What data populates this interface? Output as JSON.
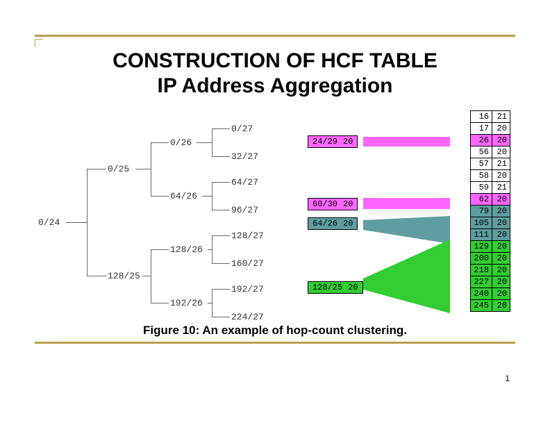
{
  "title_line1": "CONSTRUCTION OF HCF TABLE",
  "title_line2": "IP Address Aggregation",
  "caption": "Figure 10: An example of hop-count clustering.",
  "page_number": "1",
  "tree": {
    "root": "0/24",
    "l1_top": "0/25",
    "l1_bot": "128/25",
    "l2_0": "0/26",
    "l2_1": "64/26",
    "l2_2": "128/26",
    "l2_3": "192/26",
    "l3_0": "0/27",
    "l3_1": "32/27",
    "l3_2": "64/27",
    "l3_3": "96/27",
    "l3_4": "128/27",
    "l3_5": "160/27",
    "l3_6": "192/27",
    "l3_7": "224/27"
  },
  "boxes": {
    "b0": {
      "prefix": "24/29",
      "hc": "20",
      "color": "pink"
    },
    "b1": {
      "prefix": "60/30",
      "hc": "20",
      "color": "pink"
    },
    "b2": {
      "prefix": "64/26",
      "hc": "20",
      "color": "teal"
    },
    "b3": {
      "prefix": "128/25",
      "hc": "20",
      "color": "green"
    }
  },
  "table_rows": [
    {
      "ip": "16",
      "hc": "21",
      "color": ""
    },
    {
      "ip": "17",
      "hc": "20",
      "color": ""
    },
    {
      "ip": "26",
      "hc": "20",
      "color": "pink"
    },
    {
      "ip": "56",
      "hc": "20",
      "color": ""
    },
    {
      "ip": "57",
      "hc": "21",
      "color": ""
    },
    {
      "ip": "58",
      "hc": "20",
      "color": ""
    },
    {
      "ip": "59",
      "hc": "21",
      "color": ""
    },
    {
      "ip": "62",
      "hc": "20",
      "color": "pink"
    },
    {
      "ip": "79",
      "hc": "20",
      "color": "teal"
    },
    {
      "ip": "105",
      "hc": "20",
      "color": "teal"
    },
    {
      "ip": "111",
      "hc": "20",
      "color": "teal"
    },
    {
      "ip": "129",
      "hc": "20",
      "color": "green"
    },
    {
      "ip": "200",
      "hc": "20",
      "color": "green"
    },
    {
      "ip": "218",
      "hc": "20",
      "color": "green"
    },
    {
      "ip": "227",
      "hc": "20",
      "color": "green"
    },
    {
      "ip": "240",
      "hc": "20",
      "color": "green"
    },
    {
      "ip": "245",
      "hc": "20",
      "color": "green"
    }
  ],
  "colors": {
    "accent": "#b8a04a",
    "pink": "#ff66ff",
    "teal": "#5f9ea0",
    "green": "#33cc33",
    "line": "#666666"
  }
}
